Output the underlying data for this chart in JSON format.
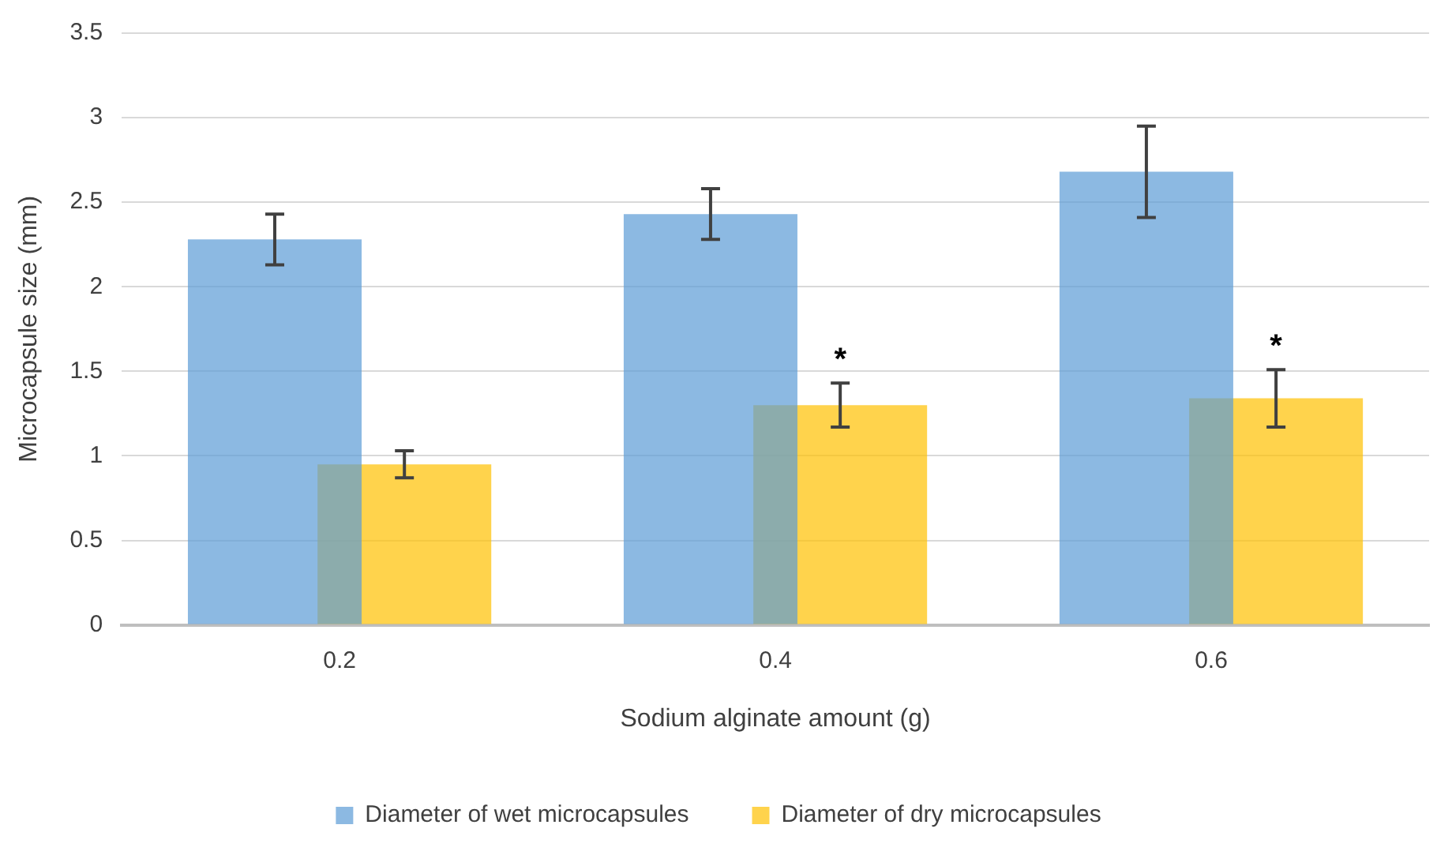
{
  "chart_data": {
    "type": "bar",
    "xlabel": "Sodium alginate amount (g)",
    "ylabel": "Microcapsule size (mm)",
    "categories": [
      "0.2",
      "0.4",
      "0.6"
    ],
    "series": [
      {
        "name": "Diameter of wet microcapsules",
        "color": "#5b9bd5",
        "values": [
          2.28,
          2.43,
          2.68
        ],
        "errors": [
          0.15,
          0.15,
          0.27
        ]
      },
      {
        "name": "Diameter of dry microcapsules",
        "color": "#ffc000",
        "values": [
          0.95,
          1.3,
          1.34
        ],
        "errors": [
          0.08,
          0.13,
          0.17
        ]
      }
    ],
    "ylim": [
      0,
      3.5
    ],
    "yticks": [
      0,
      0.5,
      1,
      1.5,
      2,
      2.5,
      3,
      3.5
    ],
    "grid": "y",
    "legend": "bottom",
    "annotations": [
      {
        "text": "*",
        "x": "0.4",
        "y": 1.3
      },
      {
        "text": "*",
        "x": "0.6",
        "y": 1.34
      }
    ]
  }
}
